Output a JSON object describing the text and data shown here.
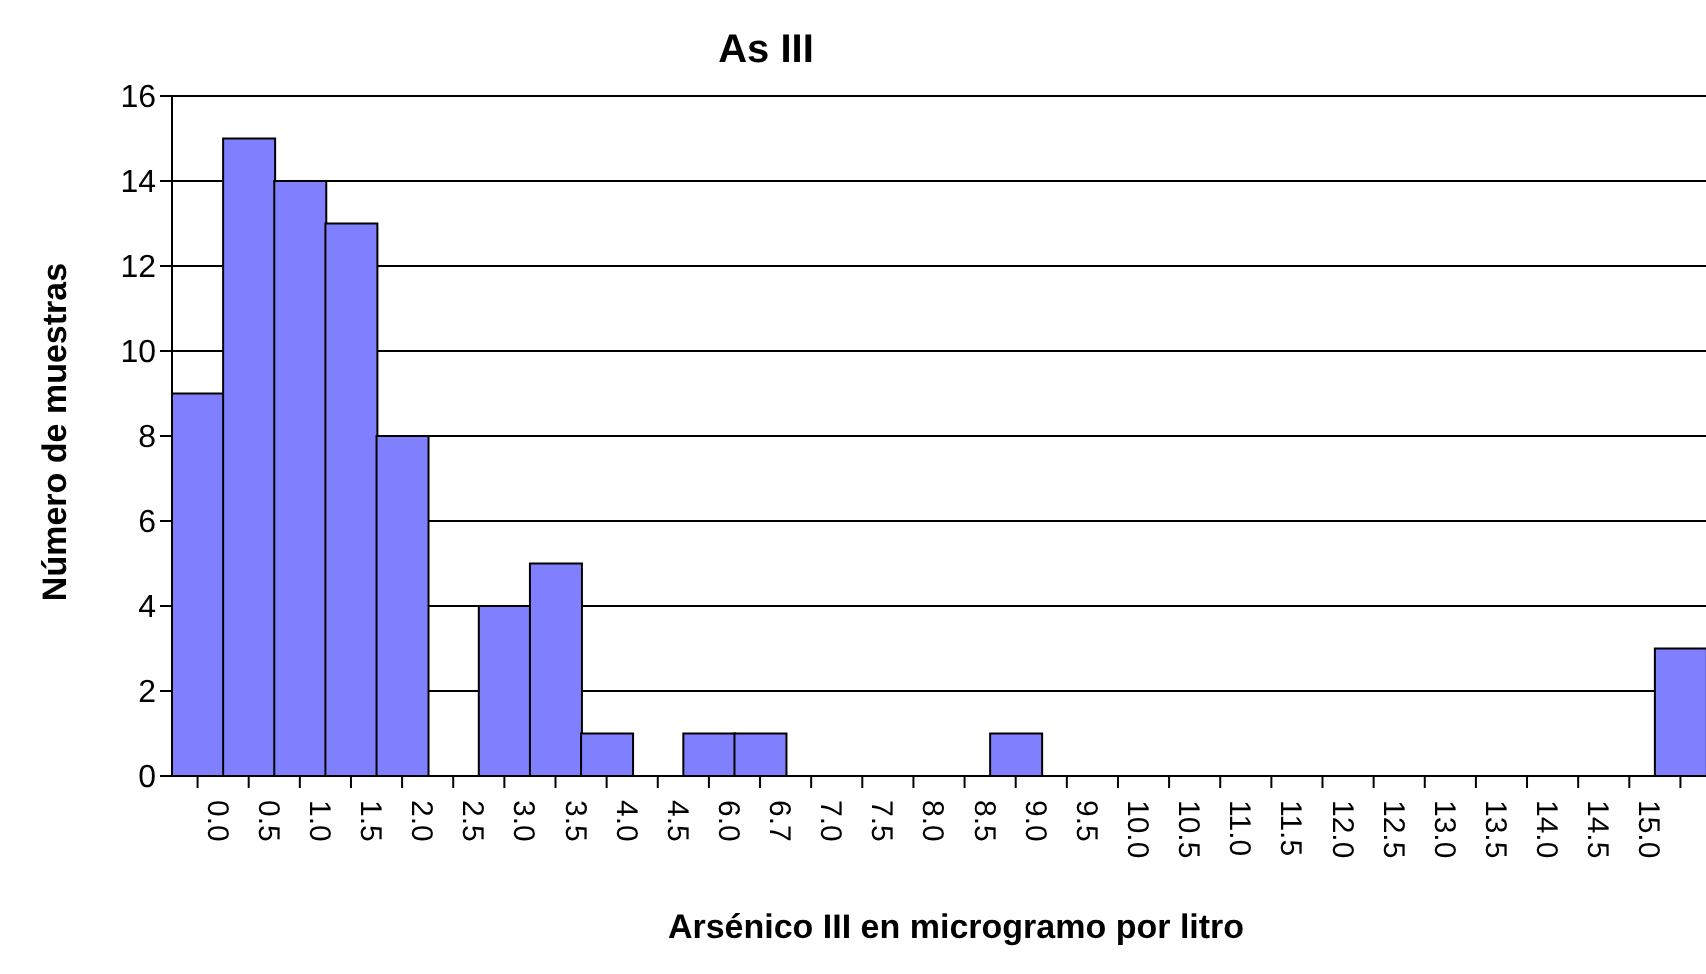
{
  "chart_data": {
    "type": "bar",
    "title": "As III",
    "xlabel": "Arsénico III en microgramo por litro",
    "ylabel": "Número de muestras",
    "categories": [
      "0.0",
      "0.5",
      "1.0",
      "1.5",
      "2.0",
      "2.5",
      "3.0",
      "3.5",
      "4.0",
      "4.5",
      "6.0",
      "6.7",
      "7.0",
      "7.5",
      "8.0",
      "8.5",
      "9.0",
      "9.5",
      "10.0",
      "10.5",
      "11.0",
      "11.5",
      "12.0",
      "12.5",
      "13.0",
      "13.5",
      "14.0",
      "14.5",
      "15.0",
      null
    ],
    "values": [
      9,
      15,
      14,
      13,
      8,
      0,
      4,
      5,
      1,
      0,
      1,
      1,
      0,
      0,
      0,
      0,
      1,
      0,
      0,
      0,
      0,
      0,
      0,
      0,
      0,
      0,
      0,
      0,
      0,
      3
    ],
    "color": "#8080ff",
    "ylim": [
      0,
      16
    ],
    "yticks": [
      0,
      2,
      4,
      6,
      8,
      10,
      12,
      14,
      16
    ],
    "grid": "y",
    "legend": false
  }
}
